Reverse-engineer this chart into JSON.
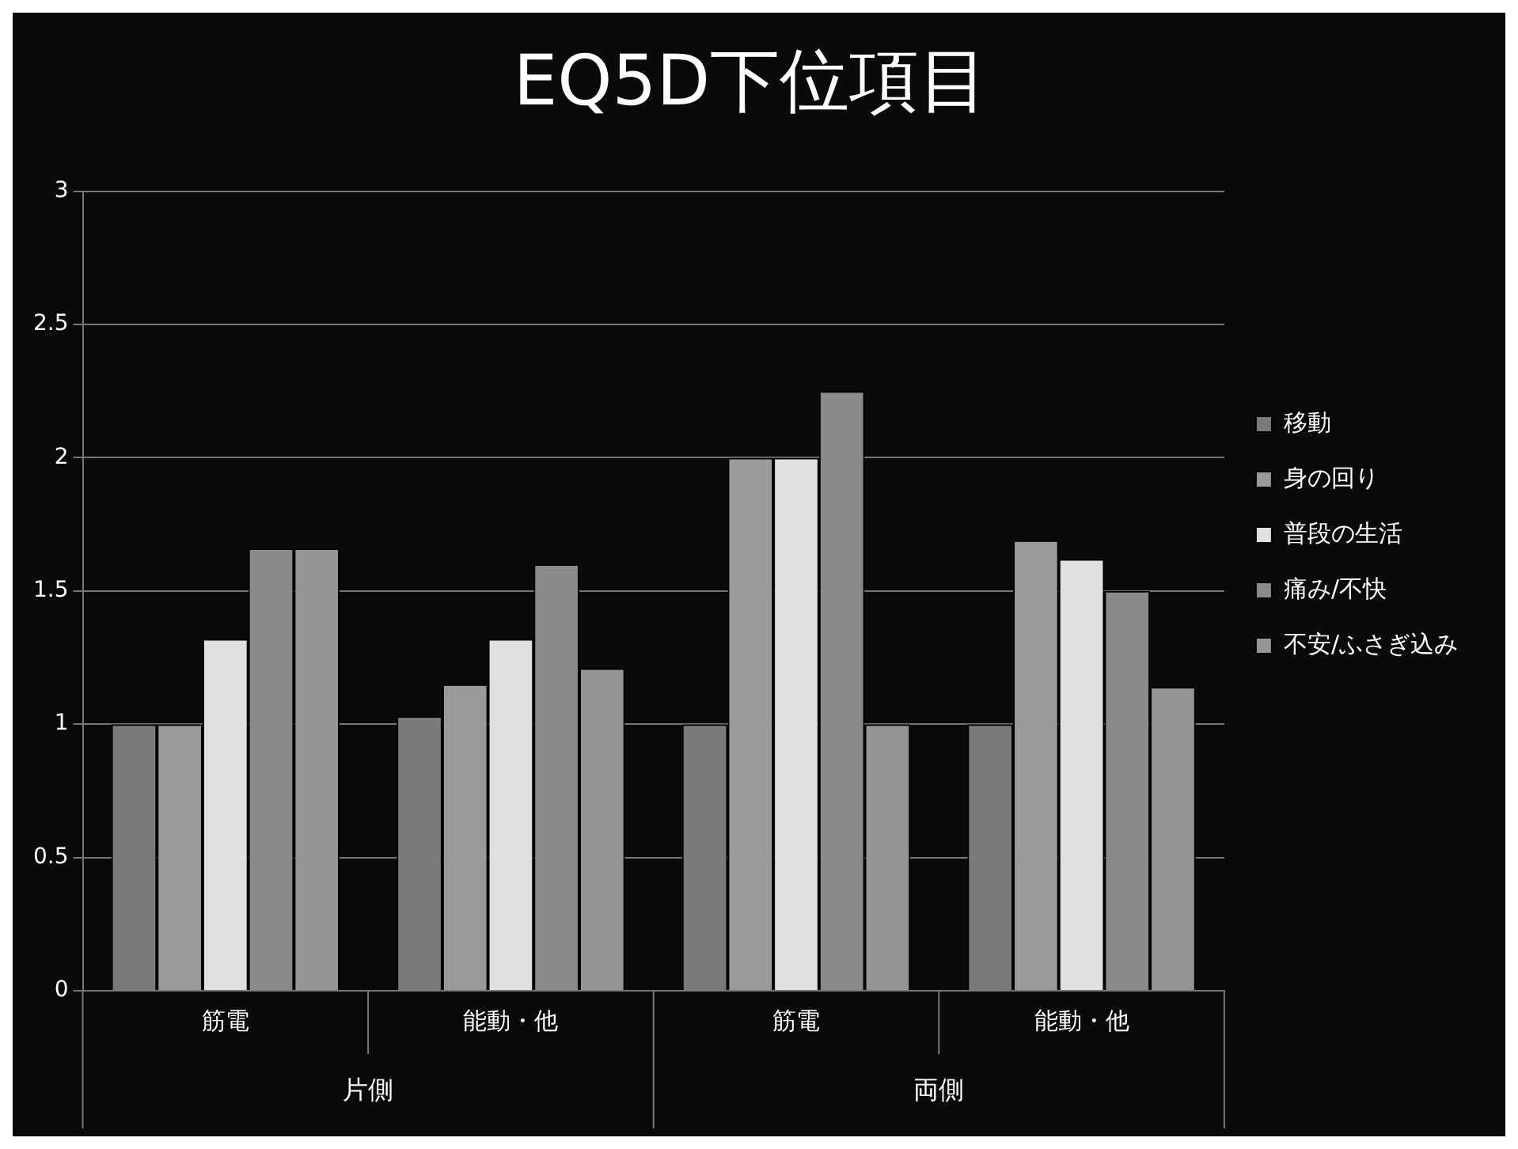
{
  "chart_data": {
    "type": "bar",
    "title": "EQ5D下位項目",
    "categories": [
      "筋電",
      "能動・他",
      "筋電",
      "能動・他"
    ],
    "annotations": [
      "片側",
      "両側"
    ],
    "series": [
      {
        "name": "移動",
        "color": "#7a7a7a",
        "values": [
          1.0,
          1.03,
          1.0,
          1.0
        ]
      },
      {
        "name": "身の回り",
        "color": "#9a9a9a",
        "values": [
          1.0,
          1.15,
          2.0,
          1.69
        ]
      },
      {
        "name": "普段の生活",
        "color": "#e0e0e0",
        "values": [
          1.32,
          1.32,
          2.0,
          1.62
        ]
      },
      {
        "name": "痛み/不快",
        "color": "#8a8a8a",
        "values": [
          1.66,
          1.6,
          2.25,
          1.5
        ]
      },
      {
        "name": "不安/ふさぎ込み",
        "color": "#959595",
        "values": [
          1.66,
          1.21,
          1.0,
          1.14
        ]
      }
    ],
    "ylim": [
      0,
      3
    ],
    "yticks": [
      0,
      0.5,
      1,
      1.5,
      2,
      2.5,
      3
    ],
    "grid": "y",
    "legend": "right"
  }
}
